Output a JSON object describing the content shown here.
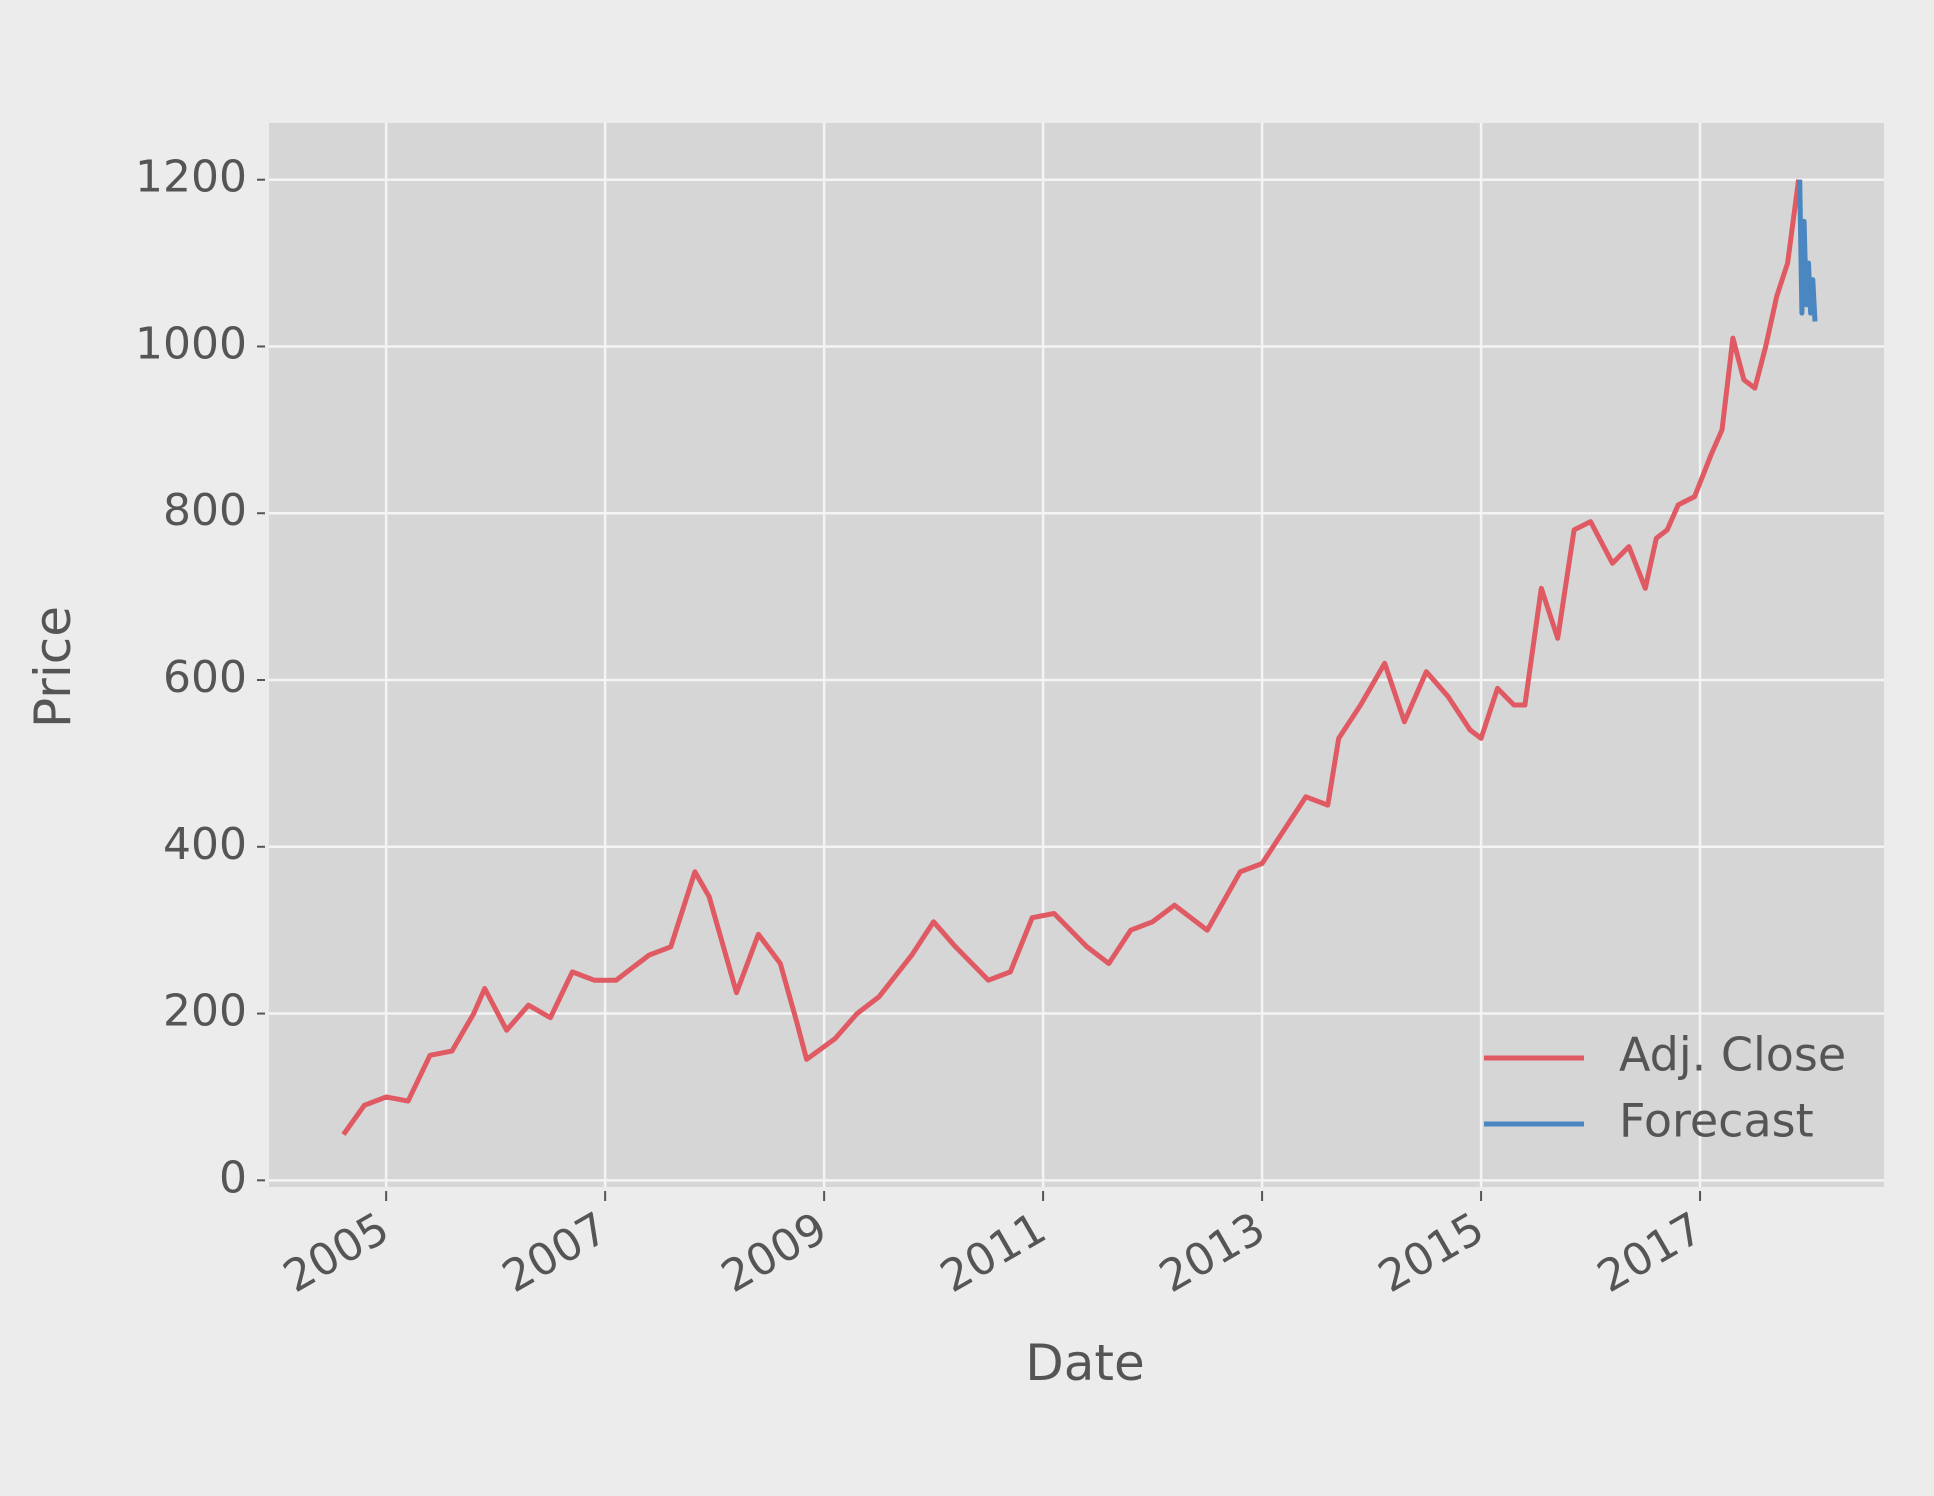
{
  "chart_data": {
    "type": "line",
    "x_label": "Date",
    "y_label": "Price",
    "xlim": [
      2003.93,
      2018.68
    ],
    "ylim": [
      -8,
      1268
    ],
    "xticks": [
      2005,
      2007,
      2009,
      2011,
      2013,
      2015,
      2017
    ],
    "yticks": [
      0,
      200,
      400,
      600,
      800,
      1000,
      1200
    ],
    "grid": true,
    "legend": "lower right",
    "series": [
      {
        "name": "Adj. Close",
        "color": "#e05a64",
        "x": [
          2004.61,
          2004.8,
          2005.0,
          2005.2,
          2005.4,
          2005.6,
          2005.8,
          2005.9,
          2006.1,
          2006.3,
          2006.5,
          2006.7,
          2006.9,
          2007.1,
          2007.4,
          2007.6,
          2007.82,
          2007.95,
          2008.2,
          2008.4,
          2008.6,
          2008.75,
          2008.84,
          2009.1,
          2009.3,
          2009.5,
          2009.8,
          2010.0,
          2010.2,
          2010.5,
          2010.7,
          2010.9,
          2011.1,
          2011.4,
          2011.6,
          2011.8,
          2012.0,
          2012.2,
          2012.5,
          2012.8,
          2013.0,
          2013.2,
          2013.4,
          2013.6,
          2013.7,
          2013.9,
          2014.12,
          2014.3,
          2014.5,
          2014.7,
          2014.9,
          2015.0,
          2015.15,
          2015.3,
          2015.4,
          2015.55,
          2015.7,
          2015.85,
          2016.0,
          2016.2,
          2016.35,
          2016.5,
          2016.6,
          2016.7,
          2016.8,
          2016.95,
          2017.1,
          2017.2,
          2017.3,
          2017.4,
          2017.5,
          2017.6,
          2017.7,
          2017.8,
          2017.9
        ],
        "values": [
          55,
          90,
          100,
          95,
          150,
          155,
          200,
          230,
          180,
          210,
          195,
          250,
          240,
          240,
          270,
          280,
          370,
          340,
          225,
          295,
          260,
          190,
          145,
          170,
          200,
          220,
          270,
          310,
          280,
          240,
          250,
          315,
          320,
          280,
          260,
          300,
          310,
          330,
          300,
          370,
          380,
          420,
          460,
          450,
          530,
          570,
          620,
          550,
          610,
          580,
          540,
          530,
          590,
          570,
          570,
          710,
          650,
          780,
          790,
          740,
          760,
          710,
          770,
          780,
          810,
          820,
          870,
          900,
          1010,
          960,
          950,
          1000,
          1060,
          1100,
          1200
        ]
      },
      {
        "name": "Forecast",
        "color": "#4a87c0",
        "x": [
          2017.91,
          2017.93,
          2017.95,
          2017.97,
          2017.99,
          2018.01,
          2018.03,
          2018.05
        ],
        "values": [
          1200,
          1040,
          1150,
          1050,
          1100,
          1040,
          1080,
          1030
        ]
      }
    ]
  }
}
